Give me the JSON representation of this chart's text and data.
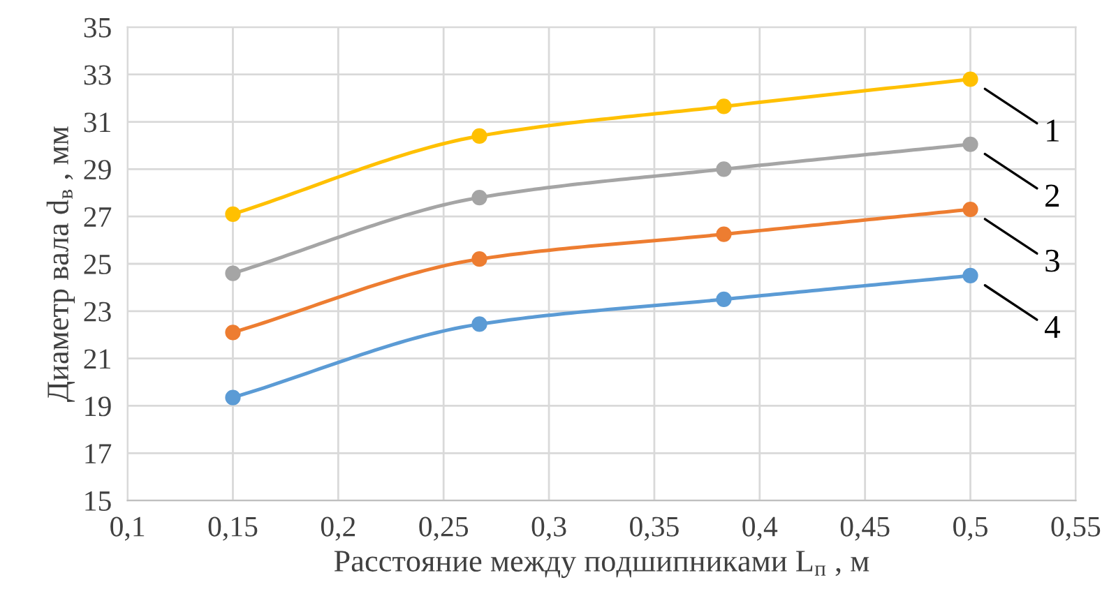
{
  "chart_data": {
    "type": "line",
    "xlabel": "Расстояние между подшипниками L$_{п}$ , м",
    "ylabel": "Диаметр вала d$_{в}$ , мм",
    "xlim": [
      0.1,
      0.55
    ],
    "xticks": [
      {
        "value": 0.1,
        "label": "0,1"
      },
      {
        "value": 0.15,
        "label": "0,15"
      },
      {
        "value": 0.2,
        "label": "0,2"
      },
      {
        "value": 0.25,
        "label": "0,25"
      },
      {
        "value": 0.3,
        "label": "0,3"
      },
      {
        "value": 0.35,
        "label": "0,35"
      },
      {
        "value": 0.4,
        "label": "0,4"
      },
      {
        "value": 0.45,
        "label": "0,45"
      },
      {
        "value": 0.5,
        "label": "0,5"
      },
      {
        "value": 0.55,
        "label": "0,55"
      }
    ],
    "ylim": [
      15,
      35
    ],
    "yticks": [
      15,
      17,
      19,
      21,
      23,
      25,
      27,
      29,
      31,
      33,
      35
    ],
    "x": [
      0.15,
      0.267,
      0.383,
      0.5
    ],
    "series": [
      {
        "color": "#ffc000",
        "values": [
          27.1,
          30.4,
          31.65,
          32.8
        ]
      },
      {
        "color": "#a5a5a5",
        "values": [
          24.6,
          27.8,
          29.0,
          30.05
        ]
      },
      {
        "color": "#ed7d31",
        "values": [
          22.1,
          25.2,
          26.25,
          27.3
        ]
      },
      {
        "color": "#5b9bd5",
        "values": [
          19.35,
          22.45,
          23.5,
          24.5
        ]
      }
    ],
    "annotations": [
      "1",
      "2",
      "3",
      "4"
    ],
    "grid": true,
    "legend": false,
    "marker": "circle",
    "line_style": "solid"
  }
}
